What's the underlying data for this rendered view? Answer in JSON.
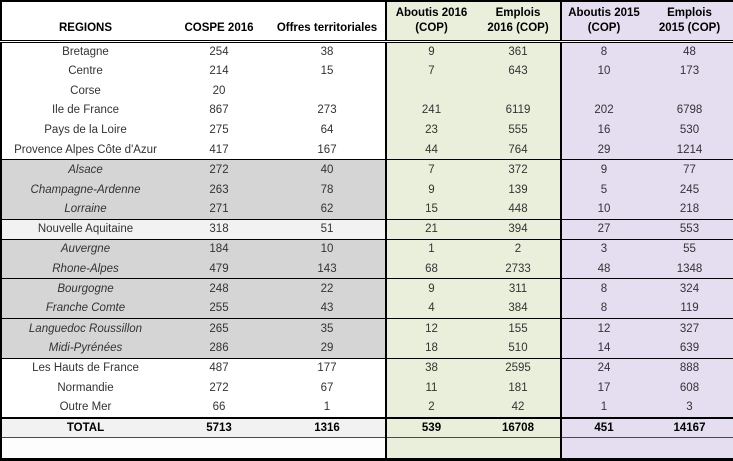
{
  "chart_data": {
    "type": "table",
    "title": "COSPE 2016 regional results table",
    "columns": [
      "REGIONS",
      "COSPE 2016",
      "Offres territoriales",
      "Aboutis 2016 (COP)",
      "Emplois 2016 (COP)",
      "Aboutis 2015 (COP)",
      "Emplois 2015 (COP)"
    ],
    "header": {
      "regions": "REGIONS",
      "cospe": "COSPE 2016",
      "offres": "Offres territoriales",
      "aboutis2016_l1": "Aboutis 2016",
      "aboutis2016_l2": "(COP)",
      "emplois2016_l1": "Emplois",
      "emplois2016_l2": "2016 (COP)",
      "aboutis2015_l1": "Aboutis 2015",
      "aboutis2015_l2": "(COP)",
      "emplois2015_l1": "Emplois",
      "emplois2015_l2": "2015 (COP)"
    },
    "rows": [
      {
        "region": "Bretagne",
        "values": [
          "254",
          "38",
          "9",
          "361",
          "8",
          "48"
        ],
        "style": "plain",
        "separator_above": false
      },
      {
        "region": "Centre",
        "values": [
          "214",
          "15",
          "7",
          "643",
          "10",
          "173"
        ],
        "style": "plain",
        "separator_above": false
      },
      {
        "region": "Corse",
        "values": [
          "20",
          "",
          "",
          "",
          "",
          ""
        ],
        "style": "plain",
        "separator_above": false
      },
      {
        "region": "Ile de France",
        "values": [
          "867",
          "273",
          "241",
          "6119",
          "202",
          "6798"
        ],
        "style": "plain",
        "separator_above": false
      },
      {
        "region": "Pays de la Loire",
        "values": [
          "275",
          "64",
          "23",
          "555",
          "16",
          "530"
        ],
        "style": "plain",
        "separator_above": false
      },
      {
        "region": "Provence Alpes Côte d'Azur",
        "values": [
          "417",
          "167",
          "44",
          "764",
          "29",
          "1214"
        ],
        "style": "plain",
        "separator_above": false
      },
      {
        "region": "Alsace",
        "values": [
          "272",
          "40",
          "7",
          "372",
          "9",
          "77"
        ],
        "style": "gray",
        "separator_above": true
      },
      {
        "region": "Champagne-Ardenne",
        "values": [
          "263",
          "78",
          "9",
          "139",
          "5",
          "245"
        ],
        "style": "gray",
        "separator_above": false
      },
      {
        "region": "Lorraine",
        "values": [
          "271",
          "62",
          "15",
          "448",
          "10",
          "218"
        ],
        "style": "gray",
        "separator_above": false
      },
      {
        "region": "Nouvelle Aquitaine",
        "values": [
          "318",
          "51",
          "21",
          "394",
          "27",
          "553"
        ],
        "style": "light",
        "separator_above": true
      },
      {
        "region": "Auvergne",
        "values": [
          "184",
          "10",
          "1",
          "2",
          "3",
          "55"
        ],
        "style": "gray",
        "separator_above": true
      },
      {
        "region": "Rhone-Alpes",
        "values": [
          "479",
          "143",
          "68",
          "2733",
          "48",
          "1348"
        ],
        "style": "gray",
        "separator_above": false
      },
      {
        "region": "Bourgogne",
        "values": [
          "248",
          "22",
          "9",
          "311",
          "8",
          "324"
        ],
        "style": "gray",
        "separator_above": true
      },
      {
        "region": "Franche Comte",
        "values": [
          "255",
          "43",
          "4",
          "384",
          "8",
          "119"
        ],
        "style": "gray",
        "separator_above": false
      },
      {
        "region": "Languedoc Roussillon",
        "values": [
          "265",
          "35",
          "12",
          "155",
          "12",
          "327"
        ],
        "style": "gray",
        "separator_above": true
      },
      {
        "region": "Midi-Pyrénées",
        "values": [
          "286",
          "29",
          "18",
          "510",
          "14",
          "639"
        ],
        "style": "gray",
        "separator_above": false
      },
      {
        "region": "Les Hauts de France",
        "values": [
          "487",
          "177",
          "38",
          "2595",
          "24",
          "888"
        ],
        "style": "plain",
        "separator_above": true
      },
      {
        "region": "Normandie",
        "values": [
          "272",
          "67",
          "11",
          "181",
          "17",
          "608"
        ],
        "style": "plain",
        "separator_above": false
      },
      {
        "region": "Outre Mer",
        "values": [
          "66",
          "1",
          "2",
          "42",
          "1",
          "3"
        ],
        "style": "plain",
        "separator_above": false
      }
    ],
    "total": {
      "label": "TOTAL",
      "values": [
        "5713",
        "1316",
        "539",
        "16708",
        "451",
        "14167"
      ]
    }
  },
  "colors": {
    "green_2016_columns": "#e9efdb",
    "purple_2015_columns": "#e4def0",
    "gray_row": "#d5d5d5",
    "light_row": "#f2f2f2",
    "text": "#333333",
    "border": "#000000"
  }
}
